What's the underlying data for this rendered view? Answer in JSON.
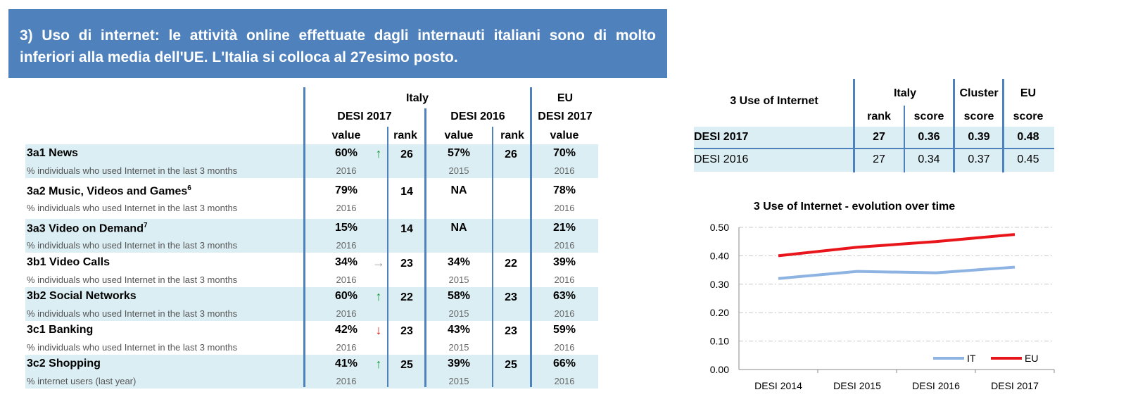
{
  "banner": {
    "line1": "3) Uso di internet: le attività online effettuate dagli internauti italiani sono di molto",
    "line2": "inferiori alla media dell'UE. L'Italia si colloca al 27esimo posto."
  },
  "main_table": {
    "headers": {
      "italy": "Italy",
      "eu": "EU",
      "desi2017": "DESI 2017",
      "desi2016": "DESI 2016",
      "eu_desi2017": "DESI 2017",
      "value": "value",
      "rank": "rank"
    },
    "rows": [
      {
        "name": "3a1 News",
        "sup": "",
        "desc": "% individuals who used Internet in the last 3 months",
        "v17": "60%",
        "trend": "up",
        "arrow": "↑",
        "r17": "26",
        "v16": "57%",
        "r16": "26",
        "eu": "70%",
        "y17": "2016",
        "y16": "2015",
        "yeu": "2016"
      },
      {
        "name": "3a2 Music, Videos and Games",
        "sup": "6",
        "desc": "% individuals who used Internet in the last 3 months",
        "v17": "79%",
        "trend": "none",
        "arrow": "",
        "r17": "14",
        "v16": "NA",
        "r16": "",
        "eu": "78%",
        "y17": "2016",
        "y16": "",
        "yeu": "2016"
      },
      {
        "name": "3a3 Video on Demand",
        "sup": "7",
        "desc": "% individuals who used Internet in the last 3 months",
        "v17": "15%",
        "trend": "none",
        "arrow": "",
        "r17": "14",
        "v16": "NA",
        "r16": "",
        "eu": "21%",
        "y17": "2016",
        "y16": "",
        "yeu": "2016"
      },
      {
        "name": "3b1 Video Calls",
        "sup": "",
        "desc": "% individuals who used Internet in the last 3 months",
        "v17": "34%",
        "trend": "flat",
        "arrow": "→",
        "r17": "23",
        "v16": "34%",
        "r16": "22",
        "eu": "39%",
        "y17": "2016",
        "y16": "2015",
        "yeu": "2016"
      },
      {
        "name": "3b2 Social Networks",
        "sup": "",
        "desc": "% individuals who used Internet in the last 3 months",
        "v17": "60%",
        "trend": "up",
        "arrow": "↑",
        "r17": "22",
        "v16": "58%",
        "r16": "23",
        "eu": "63%",
        "y17": "2016",
        "y16": "2015",
        "yeu": "2016"
      },
      {
        "name": "3c1 Banking",
        "sup": "",
        "desc": "% individuals who used Internet in the last 3 months",
        "v17": "42%",
        "trend": "down",
        "arrow": "↓",
        "r17": "23",
        "v16": "43%",
        "r16": "23",
        "eu": "59%",
        "y17": "2016",
        "y16": "2015",
        "yeu": "2016"
      },
      {
        "name": "3c2 Shopping",
        "sup": "",
        "desc": "% internet users (last year)",
        "v17": "41%",
        "trend": "up",
        "arrow": "↑",
        "r17": "25",
        "v16": "39%",
        "r16": "25",
        "eu": "66%",
        "y17": "2016",
        "y16": "2015",
        "yeu": "2016"
      }
    ]
  },
  "summary_table": {
    "title": "3 Use of Internet",
    "group_italy": "Italy",
    "group_cluster": "Cluster",
    "group_eu": "EU",
    "col_rank": "rank",
    "col_score1": "score",
    "col_score2": "score",
    "col_score3": "score",
    "rows": [
      {
        "label": "DESI 2017",
        "rank": "27",
        "it": "0.36",
        "cluster": "0.39",
        "eu": "0.48",
        "bold": true
      },
      {
        "label": "DESI 2016",
        "rank": "27",
        "it": "0.34",
        "cluster": "0.37",
        "eu": "0.45",
        "bold": false
      }
    ]
  },
  "chart_data": {
    "type": "line",
    "title": "3 Use of Internet - evolution over time",
    "categories": [
      "DESI 2014",
      "DESI 2015",
      "DESI 2016",
      "DESI 2017"
    ],
    "series": [
      {
        "name": "IT",
        "values": [
          0.32,
          0.345,
          0.34,
          0.36
        ],
        "color": "#8db3e2"
      },
      {
        "name": "EU",
        "values": [
          0.4,
          0.43,
          0.45,
          0.475
        ],
        "color": "#e8151b"
      }
    ],
    "ylim": [
      0,
      0.5
    ],
    "yticks": [
      "0.00",
      "0.10",
      "0.20",
      "0.30",
      "0.40",
      "0.50"
    ],
    "grid": true,
    "legend": "bottom-right"
  }
}
